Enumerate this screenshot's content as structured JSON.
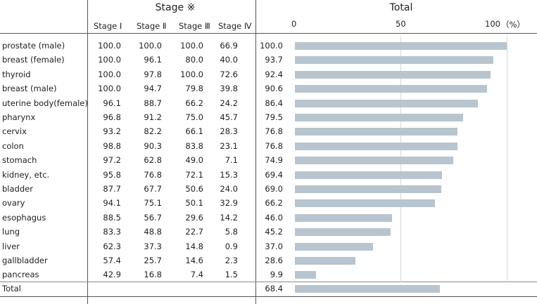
{
  "chart_data": {
    "type": "bar",
    "header": {
      "stage_group": "Stage ※",
      "stage_columns": [
        "Stage Ⅰ",
        "Stage Ⅱ",
        "Stage Ⅲ",
        "Stage Ⅳ"
      ],
      "total": "Total",
      "unit": "（%）"
    },
    "x_ticks": [
      "0",
      "50",
      "100"
    ],
    "xlim": [
      0,
      100
    ],
    "rows": [
      {
        "site": "prostate (male)",
        "s1": "100.0",
        "s2": "100.0",
        "s3": "100.0",
        "s4": "66.9",
        "total": "100.0",
        "value": 100.0
      },
      {
        "site": "breast (female)",
        "s1": "100.0",
        "s2": "96.1",
        "s3": "80.0",
        "s4": "40.0",
        "total": "93.7",
        "value": 93.7
      },
      {
        "site": "thyroid",
        "s1": "100.0",
        "s2": "97.8",
        "s3": "100.0",
        "s4": "72.6",
        "total": "92.4",
        "value": 92.4
      },
      {
        "site": "breast (male)",
        "s1": "100.0",
        "s2": "94.7",
        "s3": "79.8",
        "s4": "39.8",
        "total": "90.6",
        "value": 90.6
      },
      {
        "site": "uterine body(female)",
        "s1": "96.1",
        "s2": "88.7",
        "s3": "66.2",
        "s4": "24.2",
        "total": "86.4",
        "value": 86.4
      },
      {
        "site": "pharynx",
        "s1": "96.8",
        "s2": "91.2",
        "s3": "75.0",
        "s4": "45.7",
        "total": "79.5",
        "value": 79.5
      },
      {
        "site": "cervix",
        "s1": "93.2",
        "s2": "82.2",
        "s3": "66.1",
        "s4": "28.3",
        "total": "76.8",
        "value": 76.8
      },
      {
        "site": "colon",
        "s1": "98.8",
        "s2": "90.3",
        "s3": "83.8",
        "s4": "23.1",
        "total": "76.8",
        "value": 76.8
      },
      {
        "site": "stomach",
        "s1": "97.2",
        "s2": "62.8",
        "s3": "49.0",
        "s4": "7.1",
        "total": "74.9",
        "value": 74.9
      },
      {
        "site": "kidney, etc.",
        "s1": "95.8",
        "s2": "76.8",
        "s3": "72.1",
        "s4": "15.3",
        "total": "69.4",
        "value": 69.4
      },
      {
        "site": "bladder",
        "s1": "87.7",
        "s2": "67.7",
        "s3": "50.6",
        "s4": "24.0",
        "total": "69.0",
        "value": 69.0
      },
      {
        "site": "ovary",
        "s1": "94.1",
        "s2": "75.1",
        "s3": "50.1",
        "s4": "32.9",
        "total": "66.2",
        "value": 66.2
      },
      {
        "site": "esophagus",
        "s1": "88.5",
        "s2": "56.7",
        "s3": "29.6",
        "s4": "14.2",
        "total": "46.0",
        "value": 46.0
      },
      {
        "site": "lung",
        "s1": "83.3",
        "s2": "48.8",
        "s3": "22.7",
        "s4": "5.8",
        "total": "45.2",
        "value": 45.2
      },
      {
        "site": "liver",
        "s1": "62.3",
        "s2": "37.3",
        "s3": "14.8",
        "s4": "0.9",
        "total": "37.0",
        "value": 37.0
      },
      {
        "site": "gallbladder",
        "s1": "57.4",
        "s2": "25.7",
        "s3": "14.6",
        "s4": "2.3",
        "total": "28.6",
        "value": 28.6
      },
      {
        "site": "pancreas",
        "s1": "42.9",
        "s2": "16.8",
        "s3": "7.4",
        "s4": "1.5",
        "total": "9.9",
        "value": 9.9
      }
    ],
    "total_row": {
      "label": "Total",
      "total": "68.4",
      "value": 68.4
    },
    "bar_color": "#b8c5cf"
  }
}
